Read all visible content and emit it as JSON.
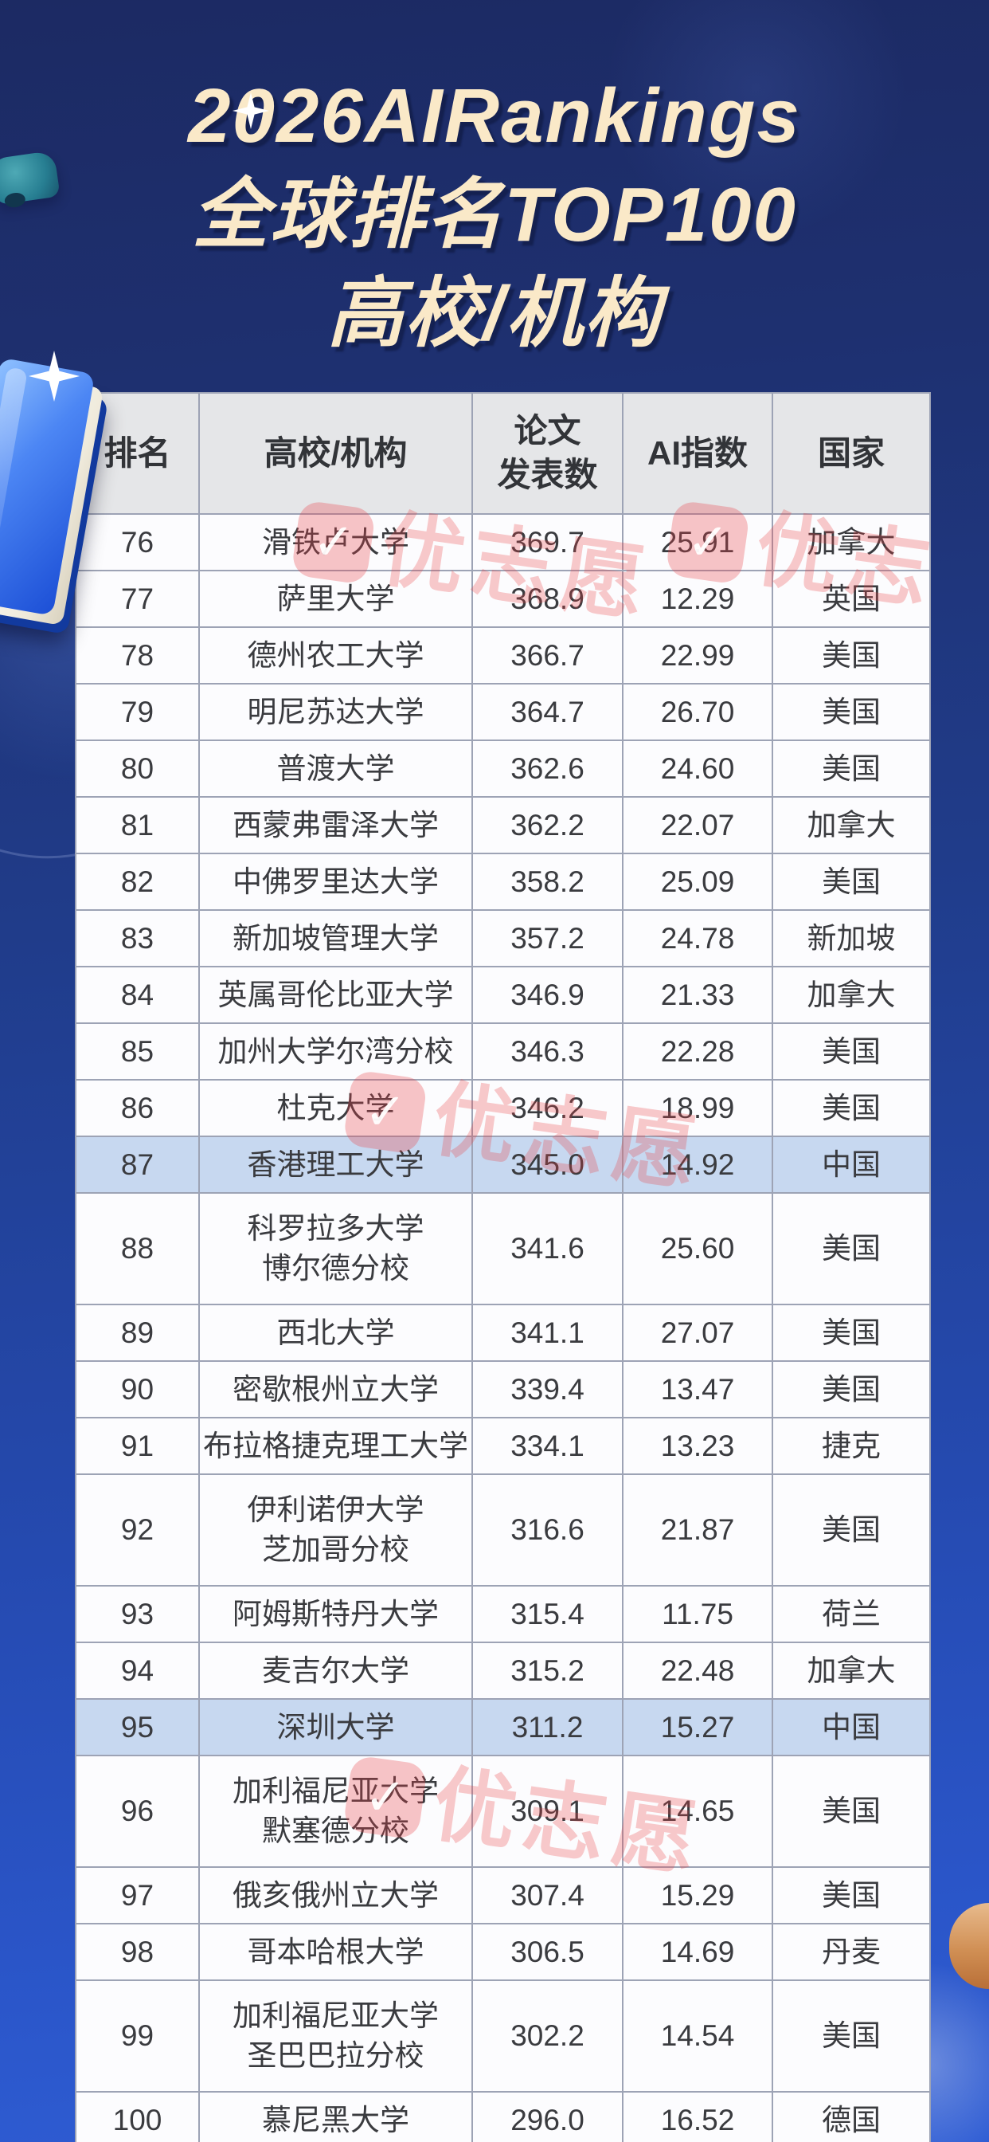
{
  "title": {
    "line1": "2026AIRankings",
    "line2": "全球排名TOP100",
    "line3": "高校/机构"
  },
  "watermark": {
    "check": "✓",
    "text": "优志愿"
  },
  "accent_colors": {
    "background_top": "#1c2a63",
    "background_bottom": "#2f5dd4",
    "title_text": "#fae9c8",
    "header_bg": "#e5e6e8",
    "row_bg": "#fcfcfe",
    "highlight_row_bg": "#c7d8f0",
    "watermark_pink": "#e94045"
  },
  "table": {
    "headers": [
      "排名",
      "高校/机构",
      "论文\n发表数",
      "AI指数",
      "国家"
    ],
    "rows": [
      {
        "rank": "76",
        "name": "滑铁卢大学",
        "papers": "369.7",
        "ai_index": "25.91",
        "country": "加拿大",
        "highlight": false,
        "tall": false
      },
      {
        "rank": "77",
        "name": "萨里大学",
        "papers": "368.9",
        "ai_index": "12.29",
        "country": "英国",
        "highlight": false,
        "tall": false
      },
      {
        "rank": "78",
        "name": "德州农工大学",
        "papers": "366.7",
        "ai_index": "22.99",
        "country": "美国",
        "highlight": false,
        "tall": false
      },
      {
        "rank": "79",
        "name": "明尼苏达大学",
        "papers": "364.7",
        "ai_index": "26.70",
        "country": "美国",
        "highlight": false,
        "tall": false
      },
      {
        "rank": "80",
        "name": "普渡大学",
        "papers": "362.6",
        "ai_index": "24.60",
        "country": "美国",
        "highlight": false,
        "tall": false
      },
      {
        "rank": "81",
        "name": "西蒙弗雷泽大学",
        "papers": "362.2",
        "ai_index": "22.07",
        "country": "加拿大",
        "highlight": false,
        "tall": false
      },
      {
        "rank": "82",
        "name": "中佛罗里达大学",
        "papers": "358.2",
        "ai_index": "25.09",
        "country": "美国",
        "highlight": false,
        "tall": false
      },
      {
        "rank": "83",
        "name": "新加坡管理大学",
        "papers": "357.2",
        "ai_index": "24.78",
        "country": "新加坡",
        "highlight": false,
        "tall": false
      },
      {
        "rank": "84",
        "name": "英属哥伦比亚大学",
        "papers": "346.9",
        "ai_index": "21.33",
        "country": "加拿大",
        "highlight": false,
        "tall": false
      },
      {
        "rank": "85",
        "name": "加州大学尔湾分校",
        "papers": "346.3",
        "ai_index": "22.28",
        "country": "美国",
        "highlight": false,
        "tall": false
      },
      {
        "rank": "86",
        "name": "杜克大学",
        "papers": "346.2",
        "ai_index": "18.99",
        "country": "美国",
        "highlight": false,
        "tall": false
      },
      {
        "rank": "87",
        "name": "香港理工大学",
        "papers": "345.0",
        "ai_index": "14.92",
        "country": "中国",
        "highlight": true,
        "tall": false
      },
      {
        "rank": "88",
        "name": "科罗拉多大学\n博尔德分校",
        "papers": "341.6",
        "ai_index": "25.60",
        "country": "美国",
        "highlight": false,
        "tall": true
      },
      {
        "rank": "89",
        "name": "西北大学",
        "papers": "341.1",
        "ai_index": "27.07",
        "country": "美国",
        "highlight": false,
        "tall": false
      },
      {
        "rank": "90",
        "name": "密歇根州立大学",
        "papers": "339.4",
        "ai_index": "13.47",
        "country": "美国",
        "highlight": false,
        "tall": false
      },
      {
        "rank": "91",
        "name": "布拉格捷克理工大学",
        "papers": "334.1",
        "ai_index": "13.23",
        "country": "捷克",
        "highlight": false,
        "tall": false
      },
      {
        "rank": "92",
        "name": "伊利诺伊大学\n芝加哥分校",
        "papers": "316.6",
        "ai_index": "21.87",
        "country": "美国",
        "highlight": false,
        "tall": true
      },
      {
        "rank": "93",
        "name": "阿姆斯特丹大学",
        "papers": "315.4",
        "ai_index": "11.75",
        "country": "荷兰",
        "highlight": false,
        "tall": false
      },
      {
        "rank": "94",
        "name": "麦吉尔大学",
        "papers": "315.2",
        "ai_index": "22.48",
        "country": "加拿大",
        "highlight": false,
        "tall": false
      },
      {
        "rank": "95",
        "name": "深圳大学",
        "papers": "311.2",
        "ai_index": "15.27",
        "country": "中国",
        "highlight": true,
        "tall": false
      },
      {
        "rank": "96",
        "name": "加利福尼亚大学\n默塞德分校",
        "papers": "309.1",
        "ai_index": "14.65",
        "country": "美国",
        "highlight": false,
        "tall": true
      },
      {
        "rank": "97",
        "name": "俄亥俄州立大学",
        "papers": "307.4",
        "ai_index": "15.29",
        "country": "美国",
        "highlight": false,
        "tall": false
      },
      {
        "rank": "98",
        "name": "哥本哈根大学",
        "papers": "306.5",
        "ai_index": "14.69",
        "country": "丹麦",
        "highlight": false,
        "tall": false
      },
      {
        "rank": "99",
        "name": "加利福尼亚大学\n圣巴巴拉分校",
        "papers": "302.2",
        "ai_index": "14.54",
        "country": "美国",
        "highlight": false,
        "tall": true
      },
      {
        "rank": "100",
        "name": "慕尼黑大学",
        "papers": "296.0",
        "ai_index": "16.52",
        "country": "德国",
        "highlight": false,
        "tall": false
      }
    ]
  },
  "chart_data": {
    "type": "table",
    "title": "2026AIRankings 全球排名TOP100 高校/机构",
    "columns": [
      "排名",
      "高校/机构",
      "论文发表数",
      "AI指数",
      "国家"
    ],
    "rows": [
      [
        76,
        "滑铁卢大学",
        369.7,
        25.91,
        "加拿大"
      ],
      [
        77,
        "萨里大学",
        368.9,
        12.29,
        "英国"
      ],
      [
        78,
        "德州农工大学",
        366.7,
        22.99,
        "美国"
      ],
      [
        79,
        "明尼苏达大学",
        364.7,
        26.7,
        "美国"
      ],
      [
        80,
        "普渡大学",
        362.6,
        24.6,
        "美国"
      ],
      [
        81,
        "西蒙弗雷泽大学",
        362.2,
        22.07,
        "加拿大"
      ],
      [
        82,
        "中佛罗里达大学",
        358.2,
        25.09,
        "美国"
      ],
      [
        83,
        "新加坡管理大学",
        357.2,
        24.78,
        "新加坡"
      ],
      [
        84,
        "英属哥伦比亚大学",
        346.9,
        21.33,
        "加拿大"
      ],
      [
        85,
        "加州大学尔湾分校",
        346.3,
        22.28,
        "美国"
      ],
      [
        86,
        "杜克大学",
        346.2,
        18.99,
        "美国"
      ],
      [
        87,
        "香港理工大学",
        345.0,
        14.92,
        "中国"
      ],
      [
        88,
        "科罗拉多大学博尔德分校",
        341.6,
        25.6,
        "美国"
      ],
      [
        89,
        "西北大学",
        341.1,
        27.07,
        "美国"
      ],
      [
        90,
        "密歇根州立大学",
        339.4,
        13.47,
        "美国"
      ],
      [
        91,
        "布拉格捷克理工大学",
        334.1,
        13.23,
        "捷克"
      ],
      [
        92,
        "伊利诺伊大学芝加哥分校",
        316.6,
        21.87,
        "美国"
      ],
      [
        93,
        "阿姆斯特丹大学",
        315.4,
        11.75,
        "荷兰"
      ],
      [
        94,
        "麦吉尔大学",
        315.2,
        22.48,
        "加拿大"
      ],
      [
        95,
        "深圳大学",
        311.2,
        15.27,
        "中国"
      ],
      [
        96,
        "加利福尼亚大学默塞德分校",
        309.1,
        14.65,
        "美国"
      ],
      [
        97,
        "俄亥俄州立大学",
        307.4,
        15.29,
        "美国"
      ],
      [
        98,
        "哥本哈根大学",
        306.5,
        14.69,
        "丹麦"
      ],
      [
        99,
        "加利福尼亚大学圣巴巴拉分校",
        302.2,
        14.54,
        "美国"
      ],
      [
        100,
        "慕尼黑大学",
        296.0,
        16.52,
        "德国"
      ]
    ],
    "highlighted_ranks": [
      87,
      95
    ],
    "legend_position": "none",
    "grid": true
  }
}
